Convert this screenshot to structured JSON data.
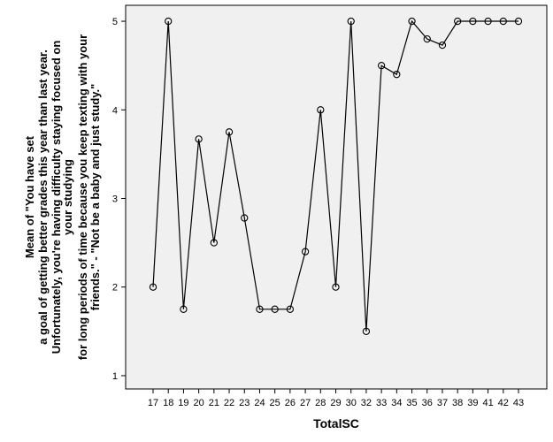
{
  "chart_data": {
    "type": "line",
    "title": "",
    "xlabel": "TotalSC",
    "ylabel_lines": [
      "Mean of \"You have set",
      "a goal of getting better grades this year than last year.",
      "Unfortunately, you're having difficulty staying focused on",
      "your studying",
      "for long periods of time because you keep texting with your",
      "friends.\" - \"Not be a baby and just study.\""
    ],
    "categories": [
      "17",
      "18",
      "19",
      "20",
      "21",
      "22",
      "23",
      "24",
      "25",
      "26",
      "27",
      "28",
      "29",
      "30",
      "32",
      "33",
      "34",
      "35",
      "36",
      "37",
      "38",
      "39",
      "41",
      "42",
      "43"
    ],
    "values": [
      2.0,
      5.0,
      1.75,
      3.67,
      2.5,
      3.75,
      2.78,
      1.75,
      1.75,
      1.75,
      2.4,
      4.0,
      2.0,
      5.0,
      1.5,
      4.5,
      4.4,
      5.0,
      4.8,
      4.73,
      5.0,
      5.0,
      5.0,
      5.0,
      5.0
    ],
    "yticks": [
      "1",
      "2",
      "3",
      "4",
      "5"
    ],
    "ylim": [
      0.85,
      5.18
    ],
    "grid": false,
    "colors": {
      "plot_bg": "#f0f0f0",
      "line": "#000000"
    }
  }
}
